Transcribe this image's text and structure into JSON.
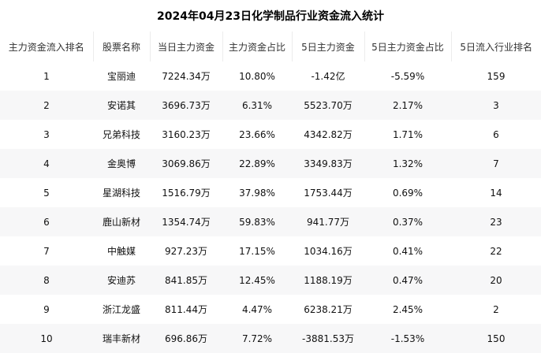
{
  "chart_data": {
    "type": "table",
    "title": "2024年04月23日化学制品行业资金流入统计",
    "columns": [
      "主力资金流入排名",
      "股票名称",
      "当日主力资金",
      "主力资金占比",
      "5日主力资金",
      "5日主力资金占比",
      "5日流入行业排名"
    ],
    "rows": [
      [
        "1",
        "宝丽迪",
        "7224.34万",
        "10.80%",
        "-1.42亿",
        "-5.59%",
        "159"
      ],
      [
        "2",
        "安诺其",
        "3696.73万",
        "6.31%",
        "5523.70万",
        "2.17%",
        "3"
      ],
      [
        "3",
        "兄弟科技",
        "3160.23万",
        "23.66%",
        "4342.82万",
        "1.71%",
        "6"
      ],
      [
        "4",
        "金奥博",
        "3069.86万",
        "22.89%",
        "3349.83万",
        "1.32%",
        "7"
      ],
      [
        "5",
        "星湖科技",
        "1516.79万",
        "37.98%",
        "1753.44万",
        "0.69%",
        "14"
      ],
      [
        "6",
        "鹿山新材",
        "1354.74万",
        "59.83%",
        "941.77万",
        "0.37%",
        "23"
      ],
      [
        "7",
        "中触媒",
        "927.23万",
        "17.15%",
        "1034.16万",
        "0.41%",
        "22"
      ],
      [
        "8",
        "安迪苏",
        "841.85万",
        "12.45%",
        "1188.19万",
        "0.47%",
        "20"
      ],
      [
        "9",
        "浙江龙盛",
        "811.44万",
        "4.47%",
        "6238.21万",
        "2.45%",
        "2"
      ],
      [
        "10",
        "瑞丰新材",
        "696.86万",
        "7.72%",
        "-3881.53万",
        "-1.53%",
        "150"
      ]
    ],
    "colors": {
      "row_alt_background": "#f7f7f8",
      "header_divider": "#ececec",
      "text": "#111111"
    }
  }
}
